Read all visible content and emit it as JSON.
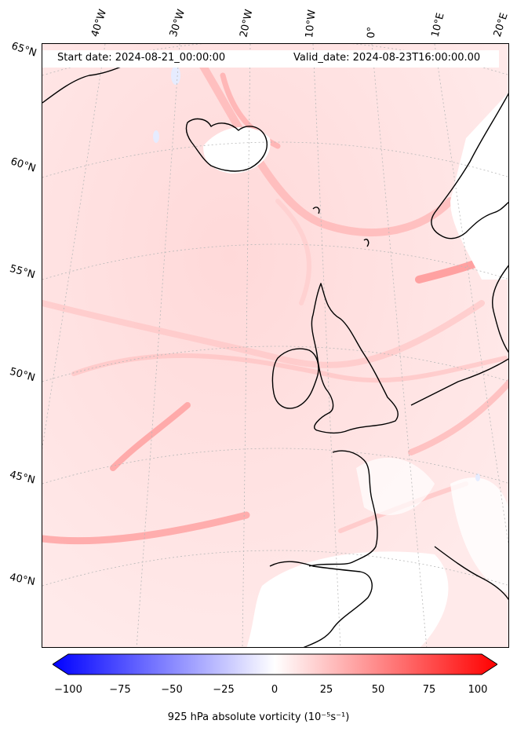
{
  "header": {
    "start_date": "Start date: 2024-08-21_00:00:00",
    "valid_date": "Valid_date: 2024-08-23T16:00:00.00"
  },
  "map": {
    "longitude_labels": [
      "40°W",
      "30°W",
      "20°W",
      "10°W",
      "0°",
      "10°E",
      "20°E"
    ],
    "latitude_labels": [
      "65°N",
      "60°N",
      "55°N",
      "50°N",
      "45°N",
      "40°N"
    ]
  },
  "colorbar": {
    "ticks": [
      "−100",
      "−75",
      "−50",
      "−25",
      "0",
      "25",
      "50",
      "75",
      "100"
    ],
    "label": "925 hPa absolute vorticity (10⁻⁵s⁻¹)",
    "min_color": "#0000ff",
    "mid_color": "#ffffff",
    "max_color": "#ff0000"
  }
}
